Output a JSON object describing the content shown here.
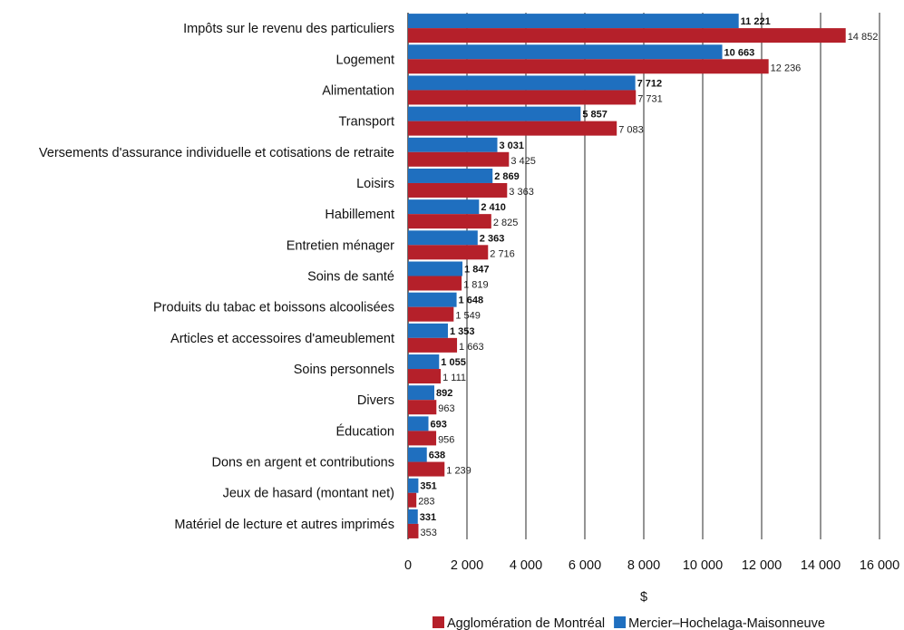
{
  "chart_data": {
    "type": "bar",
    "orientation": "horizontal",
    "categories": [
      "Impôts sur le revenu des particuliers",
      "Logement",
      "Alimentation",
      "Transport",
      "Versements d'assurance individuelle et cotisations de retraite",
      "Loisirs",
      "Habillement",
      "Entretien ménager",
      "Soins de santé",
      "Produits du tabac et boissons alcoolisées",
      "Articles et accessoires d'ameublement",
      "Soins personnels",
      "Divers",
      "Éducation",
      "Dons en argent et contributions",
      "Jeux de hasard (montant net)",
      "Matériel de lecture et autres imprimés"
    ],
    "series": [
      {
        "name": "Mercier–Hochelaga-Maisonneuve",
        "color": "#1f6fbf",
        "values": [
          11221,
          10663,
          7712,
          5857,
          3031,
          2869,
          2410,
          2363,
          1847,
          1648,
          1353,
          1055,
          892,
          693,
          638,
          351,
          331
        ],
        "labels": [
          "11 221",
          "10 663",
          "7 712",
          "5 857",
          "3 031",
          "2 869",
          "2 410",
          "2 363",
          "1 847",
          "1 648",
          "1 353",
          "1 055",
          "892",
          "693",
          "638",
          "351",
          "331"
        ]
      },
      {
        "name": "Agglomération de Montréal",
        "color": "#b5202a",
        "values": [
          14852,
          12236,
          7731,
          7083,
          3425,
          3363,
          2825,
          2716,
          1819,
          1549,
          1663,
          1111,
          963,
          956,
          1239,
          283,
          353
        ],
        "labels": [
          "14 852",
          "12 236",
          "7 731",
          "7 083",
          "3 425",
          "3 363",
          "2 825",
          "2 716",
          "1 819",
          "1 549",
          "1 663",
          "1 111",
          "963",
          "956",
          "1 239",
          "283",
          "353"
        ]
      }
    ],
    "xlim": [
      0,
      16000
    ],
    "xticks": [
      0,
      2000,
      4000,
      6000,
      8000,
      10000,
      12000,
      14000,
      16000
    ],
    "xtick_labels": [
      "0",
      "2 000",
      "4 000",
      "6 000",
      "8 000",
      "10 000",
      "12 000",
      "14 000",
      "16 000"
    ],
    "xlabel": "$",
    "grid": true,
    "legend": {
      "placement": "bottom",
      "entries": [
        "Agglomération de Montréal",
        "Mercier–Hochelaga-Maisonneuve"
      ]
    }
  }
}
